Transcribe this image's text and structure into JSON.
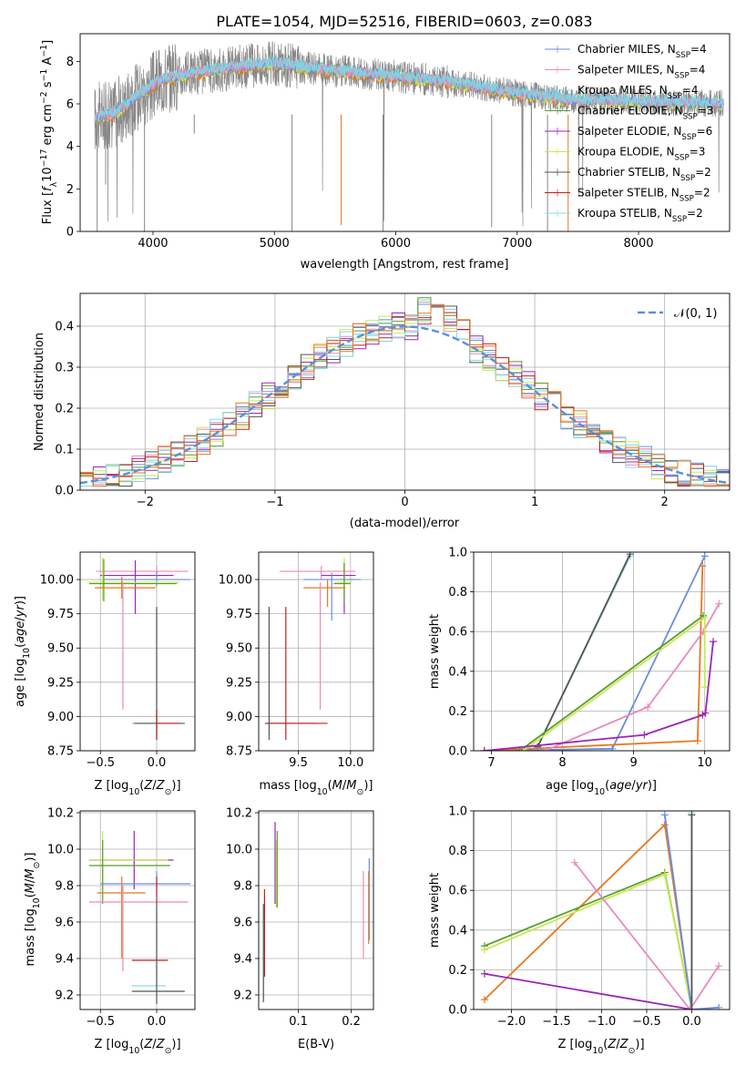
{
  "title": "PLATE=1054, MJD=52516, FIBERID=0603, z=0.083",
  "colors": {
    "Chabrier MILES": "#6a8ede",
    "Salpeter MILES": "#e98bbd",
    "Kroupa MILES": "#7fd3e0",
    "Chabrier ELODIE": "#5a9b2e",
    "Salpeter ELODIE": "#9b26b6",
    "Kroupa ELODIE": "#c6ea50",
    "Chabrier STELIB": "#555555",
    "Salpeter STELIB": "#c0201a",
    "Kroupa STELIB": "#8fd7e8",
    "orange": "#e8781e",
    "data": "#888888",
    "normal": "#5b8fd9"
  },
  "chart_data": [
    {
      "type": "line",
      "id": "spectrum",
      "xlabel": "wavelength [Angstrom, rest frame]",
      "ylabel": "Flux [f_λ10^-17 erg cm^-2 s^-1 A^-1]",
      "xlim": [
        3400,
        8750
      ],
      "ylim": [
        0,
        9.3
      ],
      "xticks": [
        4000,
        5000,
        6000,
        7000,
        8000
      ],
      "yticks": [
        0,
        2,
        4,
        6,
        8
      ],
      "legend_position": "upper right",
      "legend": [
        {
          "name": "Chabrier MILES",
          "nssp": "4"
        },
        {
          "name": "Salpeter MILES",
          "nssp": "4"
        },
        {
          "name": "Kroupa MILES",
          "nssp": "4"
        },
        {
          "name": "Chabrier ELODIE",
          "nssp": "3"
        },
        {
          "name": "Salpeter ELODIE",
          "nssp": "6"
        },
        {
          "name": "Kroupa ELODIE",
          "nssp": "3"
        },
        {
          "name": "Chabrier STELIB",
          "nssp": "2"
        },
        {
          "name": "Salpeter STELIB",
          "nssp": "2"
        },
        {
          "name": "Kroupa STELIB",
          "nssp": "2"
        }
      ],
      "continuum": [
        [
          3520,
          5.3
        ],
        [
          3700,
          5.6
        ],
        [
          3900,
          6.5
        ],
        [
          4100,
          7.2
        ],
        [
          4400,
          7.5
        ],
        [
          4800,
          7.8
        ],
        [
          5000,
          7.9
        ],
        [
          5400,
          7.6
        ],
        [
          6000,
          7.3
        ],
        [
          6500,
          7.0
        ],
        [
          7000,
          6.5
        ],
        [
          7400,
          6.2
        ],
        [
          8000,
          6.1
        ],
        [
          8700,
          6.0
        ]
      ],
      "model_range": [
        3520,
        7430
      ],
      "model_offsets_range": [
        3520,
        8700
      ]
    },
    {
      "type": "bar",
      "id": "residuals",
      "xlabel": "(data-model)/error",
      "ylabel": "Normed distribution",
      "xlim": [
        -2.5,
        2.5
      ],
      "ylim": [
        0,
        0.48
      ],
      "xticks": [
        -2,
        -1,
        0,
        1,
        2
      ],
      "yticks": [
        0.0,
        0.1,
        0.2,
        0.3,
        0.4
      ],
      "legend": [
        {
          "name": "𝒩(0, 1)"
        }
      ],
      "legend_position": "upper right"
    },
    {
      "type": "scatter",
      "id": "age_vs_z",
      "xlabel": "Z [log10(Z/Z⊙)]",
      "ylabel": "age  [log10(age/yr)]",
      "xlim": [
        -0.68,
        0.34
      ],
      "ylim": [
        8.75,
        10.2
      ],
      "xticks": [
        -0.5,
        0.0
      ],
      "yticks": [
        8.75,
        9.0,
        9.25,
        9.5,
        9.75,
        10.0
      ],
      "crosses": [
        {
          "c": "Salpeter MILES",
          "x": 0.0,
          "y": 10.06,
          "xe": [
            -0.54,
            0.28
          ],
          "ye": [
            10.0,
            10.1
          ]
        },
        {
          "c": "Salpeter ELODIE",
          "x": -0.19,
          "y": 10.03,
          "xe": [
            -0.5,
            0.15
          ],
          "ye": [
            9.75,
            10.14
          ]
        },
        {
          "c": "Chabrier MILES",
          "x": 0.0,
          "y": 10.0,
          "xe": [
            -0.48,
            0.3
          ],
          "ye": [
            9.95,
            10.06
          ]
        },
        {
          "c": "Kroupa ELODIE",
          "x": -0.48,
          "y": 9.98,
          "xe": [
            -0.62,
            0.2
          ],
          "ye": [
            9.85,
            10.16
          ]
        },
        {
          "c": "Chabrier ELODIE",
          "x": -0.47,
          "y": 9.97,
          "xe": [
            -0.6,
            0.18
          ],
          "ye": [
            9.84,
            10.15
          ]
        },
        {
          "c": "orange",
          "x": -0.31,
          "y": 9.94,
          "xe": [
            -0.55,
            -0.01
          ],
          "ye": [
            9.86,
            10.02
          ]
        },
        {
          "c": "Salpeter MILES",
          "x": -0.3,
          "y": 9.9,
          "xe": [
            -0.3,
            -0.3
          ],
          "ye": [
            9.05,
            9.98
          ]
        },
        {
          "c": "Kroupa STELIB",
          "x": 0.0,
          "y": 8.95,
          "xe": [
            -0.22,
            0.0
          ],
          "ye": [
            8.9,
            9.8
          ]
        },
        {
          "c": "Chabrier STELIB",
          "x": 0.0,
          "y": 8.95,
          "xe": [
            -0.2,
            0.25
          ],
          "ye": [
            8.83,
            9.8
          ]
        },
        {
          "c": "Salpeter STELIB",
          "x": 0.0,
          "y": 8.95,
          "xe": [
            0.0,
            0.2
          ],
          "ye": [
            8.83,
            9.05
          ]
        }
      ]
    },
    {
      "type": "scatter",
      "id": "age_vs_mass",
      "xlabel": "mass [log10(M/M⊙)]",
      "ylabel": "",
      "xlim": [
        9.12,
        10.22
      ],
      "ylim": [
        8.75,
        10.2
      ],
      "xticks": [
        9.5,
        10.0
      ],
      "yticks": [
        8.75,
        9.0,
        9.25,
        9.5,
        9.75,
        10.0
      ],
      "crosses": [
        {
          "c": "Salpeter MILES",
          "x": 9.72,
          "y": 10.06,
          "xe": [
            9.32,
            10.05
          ],
          "ye": [
            10.0,
            10.1
          ]
        },
        {
          "c": "Salpeter ELODIE",
          "x": 9.94,
          "y": 10.03,
          "xe": [
            9.72,
            10.05
          ],
          "ye": [
            9.75,
            10.12
          ]
        },
        {
          "c": "Chabrier MILES",
          "x": 9.82,
          "y": 10.0,
          "xe": [
            9.55,
            10.1
          ],
          "ye": [
            9.7,
            10.05
          ]
        },
        {
          "c": "Kroupa ELODIE",
          "x": 9.94,
          "y": 9.98,
          "xe": [
            9.85,
            10.02
          ],
          "ye": [
            9.84,
            10.16
          ]
        },
        {
          "c": "Chabrier ELODIE",
          "x": 9.94,
          "y": 9.97,
          "xe": [
            9.84,
            10.0
          ],
          "ye": [
            9.84,
            10.12
          ]
        },
        {
          "c": "orange",
          "x": 9.78,
          "y": 9.94,
          "xe": [
            9.55,
            9.95
          ],
          "ye": [
            9.8,
            10.0
          ]
        },
        {
          "c": "Salpeter MILES",
          "x": 9.71,
          "y": 9.9,
          "xe": [
            9.71,
            9.71
          ],
          "ye": [
            9.05,
            9.98
          ]
        },
        {
          "c": "Kroupa STELIB",
          "x": 9.22,
          "y": 8.95,
          "xe": [
            9.18,
            9.7
          ],
          "ye": [
            8.9,
            9.8
          ]
        },
        {
          "c": "Chabrier STELIB",
          "x": 9.22,
          "y": 8.95,
          "xe": [
            9.18,
            9.68
          ],
          "ye": [
            8.83,
            9.8
          ]
        },
        {
          "c": "Salpeter STELIB",
          "x": 9.38,
          "y": 8.95,
          "xe": [
            9.2,
            9.78
          ],
          "ye": [
            8.83,
            9.8
          ]
        }
      ]
    },
    {
      "type": "line",
      "id": "weight_vs_age",
      "xlabel": "age  [log10(age/yr)]",
      "ylabel": "mass weight",
      "xlim": [
        6.75,
        10.35
      ],
      "ylim": [
        0,
        1.0
      ],
      "xticks": [
        7,
        8,
        9,
        10
      ],
      "yticks": [
        0.0,
        0.2,
        0.4,
        0.6,
        0.8,
        1.0
      ],
      "series": [
        {
          "c": "Kroupa STELIB",
          "x": [
            7.65,
            8.95
          ],
          "y": [
            0.02,
            0.98
          ]
        },
        {
          "c": "Chabrier STELIB",
          "x": [
            7.65,
            8.95
          ],
          "y": [
            0.02,
            0.99
          ]
        },
        {
          "c": "Chabrier MILES",
          "x": [
            6.9,
            8.7,
            10.0
          ],
          "y": [
            0.0,
            0.01,
            0.98
          ]
        },
        {
          "c": "orange",
          "x": [
            6.9,
            9.9,
            9.97
          ],
          "y": [
            0.0,
            0.05,
            0.93
          ]
        },
        {
          "c": "Salpeter MILES",
          "x": [
            7.75,
            9.2,
            9.98,
            10.2
          ],
          "y": [
            0.0,
            0.22,
            0.6,
            0.74
          ]
        },
        {
          "c": "Chabrier ELODIE",
          "x": [
            7.4,
            9.98
          ],
          "y": [
            0.0,
            0.68
          ]
        },
        {
          "c": "Kroupa ELODIE",
          "x": [
            7.45,
            10.0,
            10.0
          ],
          "y": [
            0.0,
            0.67,
            0.32
          ]
        },
        {
          "c": "Salpeter ELODIE",
          "x": [
            6.9,
            9.15,
            9.97,
            10.01,
            10.12
          ],
          "y": [
            0.0,
            0.08,
            0.18,
            0.19,
            0.55
          ]
        }
      ]
    },
    {
      "type": "scatter",
      "id": "mass_vs_z",
      "xlabel": "Z [log10(Z/Z⊙)]",
      "ylabel": "mass [log10(M/M⊙)]",
      "xlim": [
        -0.68,
        0.34
      ],
      "ylim": [
        9.12,
        10.21
      ],
      "xticks": [
        -0.5,
        0.0
      ],
      "yticks": [
        9.2,
        9.4,
        9.6,
        9.8,
        10.0,
        10.2
      ],
      "crosses": [
        {
          "c": "Salpeter ELODIE",
          "x": -0.2,
          "y": 9.94,
          "xe": [
            -0.6,
            0.15
          ],
          "ye": [
            9.78,
            10.1
          ]
        },
        {
          "c": "Kroupa ELODIE",
          "x": -0.48,
          "y": 9.94,
          "xe": [
            -0.6,
            0.1
          ],
          "ye": [
            9.78,
            10.1
          ]
        },
        {
          "c": "Chabrier ELODIE",
          "x": -0.48,
          "y": 9.91,
          "xe": [
            -0.6,
            0.12
          ],
          "ye": [
            9.7,
            10.05
          ]
        },
        {
          "c": "Chabrier MILES",
          "x": 0.0,
          "y": 9.81,
          "xe": [
            -0.5,
            0.3
          ],
          "ye": [
            9.75,
            9.88
          ]
        },
        {
          "c": "orange",
          "x": -0.31,
          "y": 9.76,
          "xe": [
            -0.53,
            -0.1
          ],
          "ye": [
            9.4,
            9.85
          ]
        },
        {
          "c": "Salpeter MILES",
          "x": -0.3,
          "y": 9.71,
          "xe": [
            -0.6,
            0.28
          ],
          "ye": [
            9.33,
            9.8
          ]
        },
        {
          "c": "Salpeter STELIB",
          "x": 0.0,
          "y": 9.39,
          "xe": [
            -0.22,
            0.1
          ],
          "ye": [
            9.7,
            9.85
          ]
        },
        {
          "c": "Kroupa STELIB",
          "x": 0.0,
          "y": 9.25,
          "xe": [
            -0.22,
            0.08
          ],
          "ye": [
            9.2,
            9.68
          ]
        },
        {
          "c": "Chabrier STELIB",
          "x": 0.0,
          "y": 9.22,
          "xe": [
            -0.22,
            0.25
          ],
          "ye": [
            9.15,
            9.7
          ]
        }
      ]
    },
    {
      "type": "scatter",
      "id": "mass_vs_ebv",
      "xlabel": "E(B-V)",
      "ylabel": "",
      "xlim": [
        0.025,
        0.242
      ],
      "ylim": [
        9.12,
        10.21
      ],
      "xticks": [
        0.1,
        0.2
      ],
      "yticks": [
        9.2,
        9.4,
        9.6,
        9.8,
        10.0,
        10.2
      ],
      "crosses": [
        {
          "c": "Salpeter ELODIE",
          "x": 0.056,
          "y": 9.94,
          "ye": [
            9.7,
            10.15
          ]
        },
        {
          "c": "Kroupa ELODIE",
          "x": 0.058,
          "y": 9.94,
          "ye": [
            9.68,
            10.05
          ]
        },
        {
          "c": "Chabrier ELODIE",
          "x": 0.06,
          "y": 9.91,
          "ye": [
            9.68,
            10.1
          ]
        },
        {
          "c": "Chabrier MILES",
          "x": 0.234,
          "y": 9.81,
          "ye": [
            9.5,
            9.95
          ]
        },
        {
          "c": "orange",
          "x": 0.233,
          "y": 9.76,
          "ye": [
            9.48,
            9.88
          ]
        },
        {
          "c": "Salpeter MILES",
          "x": 0.223,
          "y": 9.71,
          "ye": [
            9.4,
            9.88
          ]
        },
        {
          "c": "Salpeter STELIB",
          "x": 0.036,
          "y": 9.39,
          "ye": [
            9.3,
            9.78
          ]
        },
        {
          "c": "Kroupa STELIB",
          "x": 0.034,
          "y": 9.25,
          "ye": [
            9.18,
            9.65
          ]
        },
        {
          "c": "Chabrier STELIB",
          "x": 0.034,
          "y": 9.22,
          "ye": [
            9.16,
            9.7
          ]
        }
      ]
    },
    {
      "type": "line",
      "id": "weight_vs_z",
      "xlabel": "Z [log10(Z/Z⊙)]",
      "ylabel": "mass weight",
      "xlim": [
        -2.42,
        0.42
      ],
      "ylim": [
        0,
        1.0
      ],
      "xticks": [
        -2.0,
        -1.5,
        -1.0,
        -0.5,
        0.0
      ],
      "yticks": [
        0.0,
        0.2,
        0.4,
        0.6,
        0.8,
        1.0
      ],
      "series": [
        {
          "c": "orange",
          "x": [
            -2.3,
            -0.3,
            0.0
          ],
          "y": [
            0.05,
            0.93,
            0.0
          ]
        },
        {
          "c": "Chabrier ELODIE",
          "x": -2.3,
          "y": 0.32,
          "pts": [
            [
              -2.3,
              0.32
            ],
            [
              -0.3,
              0.69
            ],
            [
              0.0,
              0.0
            ]
          ]
        },
        {
          "c": "Kroupa ELODIE",
          "pts": [
            [
              -2.3,
              0.3
            ],
            [
              -0.3,
              0.68
            ],
            [
              0.0,
              0.0
            ]
          ]
        },
        {
          "c": "Salpeter MILES",
          "pts": [
            [
              -1.3,
              0.74
            ],
            [
              -0.02,
              0.0
            ],
            [
              0.3,
              0.22
            ]
          ]
        },
        {
          "c": "Salpeter ELODIE",
          "pts": [
            [
              -2.3,
              0.18
            ],
            [
              0.0,
              0.0
            ]
          ]
        },
        {
          "c": "Chabrier MILES",
          "pts": [
            [
              -0.3,
              0.98
            ],
            [
              0.0,
              0.0
            ],
            [
              0.3,
              0.01
            ]
          ]
        },
        {
          "c": "Kroupa STELIB",
          "pts": [
            [
              0.0,
              0.99
            ],
            [
              0.0,
              0.0
            ]
          ]
        },
        {
          "c": "Chabrier STELIB",
          "pts": [
            [
              0.0,
              0.98
            ],
            [
              0.0,
              0.0
            ]
          ]
        }
      ]
    }
  ]
}
